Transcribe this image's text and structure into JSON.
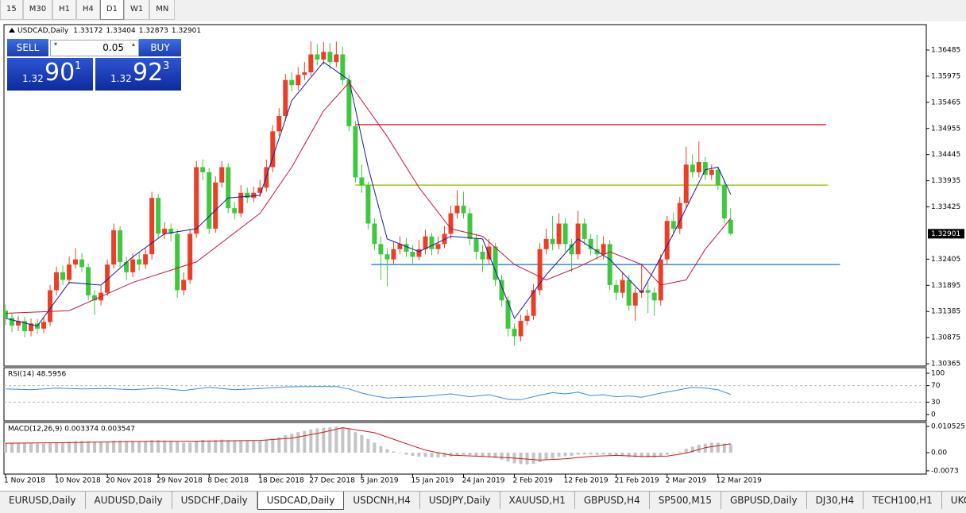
{
  "toolbar": {
    "timeframes": [
      "15",
      "M30",
      "H1",
      "H4",
      "D1",
      "W1",
      "MN"
    ]
  },
  "trade_panel": {
    "sell": "SELL",
    "lot": "0.05",
    "buy": "BUY",
    "bid": {
      "big": "1.32",
      "main": "90",
      "pip": "1"
    },
    "ask": {
      "big": "1.32",
      "main": "92",
      "pip": "3"
    }
  },
  "chart_data": [
    {
      "type": "candlestick",
      "title": "USDCAD,Daily",
      "header_values": [
        1.33172,
        1.33404,
        1.32873,
        1.32901
      ],
      "open": [
        1.314,
        1.3126,
        1.3111,
        1.312,
        1.31,
        1.3115,
        1.3105,
        1.3118,
        1.318,
        1.3215,
        1.32,
        1.323,
        1.324,
        1.3225,
        1.317,
        1.316,
        1.3175,
        1.323,
        1.3297,
        1.3235,
        1.3215,
        1.324,
        1.323,
        1.325,
        1.336,
        1.329,
        1.33,
        1.329,
        1.318,
        1.32,
        1.329,
        1.342,
        1.341,
        1.33,
        1.339,
        1.342,
        1.334,
        1.333,
        1.337,
        1.336,
        1.337,
        1.338,
        1.342,
        1.349,
        1.352,
        1.359,
        1.358,
        1.36,
        1.3605,
        1.364,
        1.363,
        1.3645,
        1.3625,
        1.364,
        1.359,
        1.35,
        1.34,
        1.3385,
        1.331,
        1.327,
        1.325,
        1.324,
        1.326,
        1.327,
        1.3255,
        1.3245,
        1.326,
        1.3285,
        1.326,
        1.327,
        1.329,
        1.333,
        1.3345,
        1.333,
        1.328,
        1.3255,
        1.324,
        1.3265,
        1.32,
        1.316,
        1.3105,
        1.309,
        1.312,
        1.313,
        1.318,
        1.326,
        1.328,
        1.327,
        1.331,
        1.327,
        1.325,
        1.331,
        1.328,
        1.326,
        1.325,
        1.327,
        1.319,
        1.3175,
        1.32,
        1.315,
        1.3175,
        1.318,
        1.3175,
        1.316,
        1.324,
        1.3315,
        1.33,
        1.335,
        1.3425,
        1.341,
        1.343,
        1.3405,
        1.3415,
        1.3385,
        1.3317
      ],
      "high": [
        1.3152,
        1.3135,
        1.313,
        1.3128,
        1.3125,
        1.3124,
        1.3128,
        1.319,
        1.3226,
        1.3228,
        1.3245,
        1.3262,
        1.3252,
        1.3232,
        1.318,
        1.3188,
        1.324,
        1.331,
        1.3305,
        1.3245,
        1.3252,
        1.3255,
        1.3262,
        1.3372,
        1.3368,
        1.3312,
        1.331,
        1.3298,
        1.3215,
        1.33,
        1.3432,
        1.3435,
        1.3418,
        1.3402,
        1.3432,
        1.3428,
        1.3352,
        1.3385,
        1.338,
        1.3382,
        1.3395,
        1.3435,
        1.3502,
        1.3535,
        1.3602,
        1.3605,
        1.3615,
        1.3625,
        1.3665,
        1.366,
        1.3664,
        1.3662,
        1.3665,
        1.3655,
        1.36,
        1.351,
        1.3425,
        1.3392,
        1.332,
        1.3285,
        1.3262,
        1.3275,
        1.3285,
        1.3282,
        1.3268,
        1.3278,
        1.3298,
        1.3292,
        1.3285,
        1.3305,
        1.3345,
        1.3375,
        1.3372,
        1.334,
        1.329,
        1.3268,
        1.328,
        1.3272,
        1.321,
        1.3168,
        1.3115,
        1.3132,
        1.3142,
        1.3192,
        1.3272,
        1.33,
        1.3325,
        1.333,
        1.332,
        1.328,
        1.3335,
        1.332,
        1.329,
        1.3288,
        1.3285,
        1.3278,
        1.32,
        1.3215,
        1.321,
        1.3185,
        1.3232,
        1.3195,
        1.3185,
        1.325,
        1.3325,
        1.3332,
        1.3362,
        1.346,
        1.3445,
        1.347,
        1.344,
        1.3425,
        1.342,
        1.3395,
        1.334
      ],
      "low": [
        1.3112,
        1.3098,
        1.31,
        1.3088,
        1.309,
        1.3095,
        1.3096,
        1.311,
        1.317,
        1.319,
        1.3192,
        1.3222,
        1.3215,
        1.316,
        1.3132,
        1.315,
        1.3168,
        1.3222,
        1.3225,
        1.32,
        1.3205,
        1.3218,
        1.3222,
        1.324,
        1.328,
        1.328,
        1.3275,
        1.3165,
        1.317,
        1.3192,
        1.3282,
        1.3395,
        1.329,
        1.3292,
        1.338,
        1.333,
        1.3318,
        1.3322,
        1.335,
        1.3352,
        1.3362,
        1.3372,
        1.341,
        1.348,
        1.351,
        1.3568,
        1.357,
        1.359,
        1.3598,
        1.3618,
        1.362,
        1.3612,
        1.3615,
        1.358,
        1.349,
        1.339,
        1.337,
        1.3298,
        1.3258,
        1.32,
        1.3188,
        1.323,
        1.325,
        1.3245,
        1.3232,
        1.3238,
        1.325,
        1.3248,
        1.325,
        1.3262,
        1.328,
        1.332,
        1.332,
        1.3268,
        1.324,
        1.3215,
        1.3232,
        1.3188,
        1.3148,
        1.309,
        1.3072,
        1.308,
        1.3112,
        1.3122,
        1.317,
        1.325,
        1.3258,
        1.326,
        1.3255,
        1.3215,
        1.324,
        1.3268,
        1.3248,
        1.324,
        1.324,
        1.318,
        1.316,
        1.3165,
        1.314,
        1.312,
        1.3165,
        1.3135,
        1.313,
        1.315,
        1.323,
        1.329,
        1.329,
        1.334,
        1.34,
        1.34,
        1.3395,
        1.3395,
        1.3375,
        1.331,
        1.3287
      ],
      "close": [
        1.3126,
        1.3111,
        1.312,
        1.31,
        1.3115,
        1.3105,
        1.3118,
        1.318,
        1.3215,
        1.32,
        1.323,
        1.324,
        1.3225,
        1.317,
        1.316,
        1.3175,
        1.323,
        1.3297,
        1.3235,
        1.3215,
        1.324,
        1.323,
        1.325,
        1.336,
        1.329,
        1.33,
        1.329,
        1.318,
        1.32,
        1.329,
        1.342,
        1.341,
        1.33,
        1.339,
        1.342,
        1.334,
        1.333,
        1.337,
        1.336,
        1.337,
        1.338,
        1.342,
        1.349,
        1.352,
        1.359,
        1.358,
        1.36,
        1.3605,
        1.364,
        1.363,
        1.3645,
        1.3625,
        1.364,
        1.359,
        1.35,
        1.34,
        1.3385,
        1.331,
        1.327,
        1.325,
        1.324,
        1.326,
        1.327,
        1.3255,
        1.3245,
        1.326,
        1.3285,
        1.326,
        1.327,
        1.329,
        1.333,
        1.3345,
        1.333,
        1.328,
        1.3255,
        1.324,
        1.3265,
        1.32,
        1.316,
        1.3105,
        1.309,
        1.312,
        1.313,
        1.318,
        1.326,
        1.328,
        1.327,
        1.331,
        1.327,
        1.325,
        1.331,
        1.328,
        1.326,
        1.325,
        1.327,
        1.319,
        1.3175,
        1.32,
        1.315,
        1.3175,
        1.318,
        1.3175,
        1.316,
        1.324,
        1.3315,
        1.33,
        1.335,
        1.3425,
        1.341,
        1.343,
        1.3405,
        1.3415,
        1.3385,
        1.332,
        1.32901
      ],
      "colors": {
        "up": "#ea3f27",
        "down": "#3fc83f"
      },
      "series": [
        {
          "color": "#1a1a9a",
          "x": [
            0,
            5,
            10,
            15,
            20,
            25,
            30,
            35,
            40,
            45,
            50,
            54,
            57,
            60,
            65,
            70,
            75,
            80,
            85,
            90,
            95,
            100,
            105,
            110,
            112,
            114
          ],
          "values": [
            1.3125,
            1.311,
            1.3195,
            1.319,
            1.3245,
            1.329,
            1.33,
            1.336,
            1.3365,
            1.355,
            1.3625,
            1.359,
            1.342,
            1.328,
            1.3255,
            1.3285,
            1.328,
            1.3125,
            1.321,
            1.328,
            1.324,
            1.3175,
            1.329,
            1.3415,
            1.342,
            1.3367
          ]
        },
        {
          "color": "#c8143c",
          "x": [
            0,
            10,
            20,
            30,
            40,
            45,
            50,
            54,
            60,
            65,
            70,
            75,
            80,
            85,
            90,
            95,
            100,
            103,
            107,
            110,
            114
          ],
          "values": [
            1.3135,
            1.314,
            1.3195,
            1.3235,
            1.333,
            1.342,
            1.353,
            1.3585,
            1.348,
            1.338,
            1.33,
            1.3285,
            1.323,
            1.32,
            1.3225,
            1.3255,
            1.323,
            1.319,
            1.32,
            1.326,
            1.332
          ]
        }
      ],
      "levels": [
        {
          "value": 1.3503,
          "color": "#f0282d",
          "x": [
            55,
            129
          ]
        },
        {
          "value": 1.3385,
          "color": "#9ccd14",
          "x": [
            55,
            129.3
          ]
        },
        {
          "value": 1.323,
          "color": "#2d8ce6",
          "x": [
            57.5,
            131.2
          ]
        }
      ],
      "current_price": 1.32901,
      "xlim": [
        -0.25,
        144.75
      ],
      "ylim": [
        1.30319,
        1.36981
      ],
      "yticks": [
        1.36485,
        1.35975,
        1.35465,
        1.34955,
        1.34445,
        1.33935,
        1.33425,
        1.32405,
        1.31895,
        1.31385,
        1.30875,
        1.30365
      ],
      "xticks": [
        {
          "value": 0,
          "label": "1 Nov 2018"
        },
        {
          "value": 8,
          "label": "10 Nov 2018"
        },
        {
          "value": 16,
          "label": "20 Nov 2018"
        },
        {
          "value": 24,
          "label": "29 Nov 2018"
        },
        {
          "value": 32,
          "label": "8 Dec 2018"
        },
        {
          "value": 40,
          "label": "18 Dec 2018"
        },
        {
          "value": 48,
          "label": "27 Dec 2018"
        },
        {
          "value": 56,
          "label": "5 Jan 2019"
        },
        {
          "value": 64,
          "label": "15 Jan 2019"
        },
        {
          "value": 72,
          "label": "24 Jan 2019"
        },
        {
          "value": 80,
          "label": "2 Feb 2019"
        },
        {
          "value": 88,
          "label": "12 Feb 2019"
        },
        {
          "value": 96,
          "label": "21 Feb 2019"
        },
        {
          "value": 104,
          "label": "2 Mar 2019"
        },
        {
          "value": 112,
          "label": "12 Mar 2019"
        }
      ]
    },
    {
      "type": "line",
      "title": "RSI(14) 48.5956",
      "color": "#2d8ce6",
      "x": [
        0,
        4,
        8,
        12,
        16,
        20,
        24,
        28,
        32,
        36,
        40,
        44,
        48,
        52,
        54,
        56,
        58,
        60,
        63,
        66,
        70,
        73,
        76,
        79,
        81,
        84,
        86,
        88,
        90,
        92,
        94,
        96,
        98,
        100,
        103,
        106,
        108,
        110,
        112,
        114
      ],
      "values": [
        62,
        60,
        64,
        62,
        63,
        60,
        64,
        58,
        66,
        60,
        63,
        67,
        68,
        68,
        62,
        52,
        45,
        40,
        42,
        44,
        50,
        43,
        48,
        37,
        36,
        47,
        53,
        50,
        54,
        46,
        48,
        43,
        45,
        42,
        52,
        60,
        66,
        64,
        60,
        48.5956
      ],
      "levels": [
        70,
        30
      ],
      "xlim": [
        -0.25,
        144.75
      ],
      "ylim": [
        -15.4,
        113.5
      ],
      "yticks": [
        100,
        70,
        30,
        0
      ]
    },
    {
      "type": "bar",
      "title": "MACD(12,26,9) 0.003374 0.003547",
      "color": "#c4c4c4",
      "values": [
        0.004,
        0.0039,
        0.0038,
        0.0037,
        0.0037,
        0.0036,
        0.0036,
        0.0038,
        0.0041,
        0.0042,
        0.0044,
        0.0046,
        0.0047,
        0.0046,
        0.0044,
        0.0043,
        0.0044,
        0.0048,
        0.0048,
        0.0047,
        0.0047,
        0.0046,
        0.0046,
        0.005,
        0.005,
        0.0049,
        0.0048,
        0.0043,
        0.004,
        0.0041,
        0.0047,
        0.0051,
        0.0049,
        0.005,
        0.0052,
        0.005,
        0.0048,
        0.0048,
        0.0047,
        0.0047,
        0.0047,
        0.005,
        0.0056,
        0.0062,
        0.007,
        0.0076,
        0.0082,
        0.0087,
        0.0093,
        0.0097,
        0.01,
        0.0102,
        0.0104,
        0.0102,
        0.0095,
        0.0082,
        0.007,
        0.0055,
        0.004,
        0.0026,
        0.0014,
        0.0005,
        -0.0002,
        -0.0008,
        -0.0013,
        -0.0016,
        -0.0017,
        -0.0019,
        -0.0019,
        -0.0018,
        -0.0015,
        -0.0011,
        -0.0009,
        -0.001,
        -0.0013,
        -0.0016,
        -0.0017,
        -0.0021,
        -0.0028,
        -0.0036,
        -0.0043,
        -0.0046,
        -0.0047,
        -0.0045,
        -0.0038,
        -0.003,
        -0.0024,
        -0.0017,
        -0.0014,
        -0.0013,
        -0.0008,
        -0.0007,
        -0.0007,
        -0.0008,
        -0.0007,
        -0.001,
        -0.0013,
        -0.0014,
        -0.0017,
        -0.0018,
        -0.0018,
        -0.0019,
        -0.002,
        -0.0016,
        -0.0008,
        -0.0003,
        0.0004,
        0.0016,
        0.0024,
        0.0032,
        0.0036,
        0.004,
        0.004,
        0.0037,
        0.003374
      ],
      "series": [
        {
          "color": "#d01818",
          "x": [
            0,
            10,
            20,
            30,
            40,
            45,
            50,
            53,
            58,
            62,
            66,
            70,
            75,
            80,
            84,
            88,
            92,
            96,
            100,
            104,
            107,
            110,
            114
          ],
          "values": [
            0.0038,
            0.004,
            0.0045,
            0.0046,
            0.0049,
            0.0058,
            0.0082,
            0.01,
            0.008,
            0.0045,
            0.001,
            -0.001,
            -0.0015,
            -0.0022,
            -0.003,
            -0.0025,
            -0.0015,
            -0.0011,
            -0.0015,
            -0.0014,
            -0.0002,
            0.002,
            0.003547
          ]
        }
      ],
      "xlim": [
        -0.25,
        144.75
      ],
      "ylim": [
        -0.0086,
        0.0121
      ],
      "yticks": [
        0.010525,
        {
          "value": 0,
          "label": "0.00"
        },
        -0.0073
      ]
    }
  ],
  "tabs": [
    "EURUSD,Daily",
    "AUDUSD,Daily",
    "USDCHF,Daily",
    "USDCAD,Daily",
    "USDCNH,H4",
    "USDJPY,Daily",
    "XAUUSD,H1",
    "GBPUSD,H4",
    "SP500,M15",
    "GBPUSD,Daily",
    "DJ30,H4",
    "TECH100,H1",
    "UKC"
  ]
}
